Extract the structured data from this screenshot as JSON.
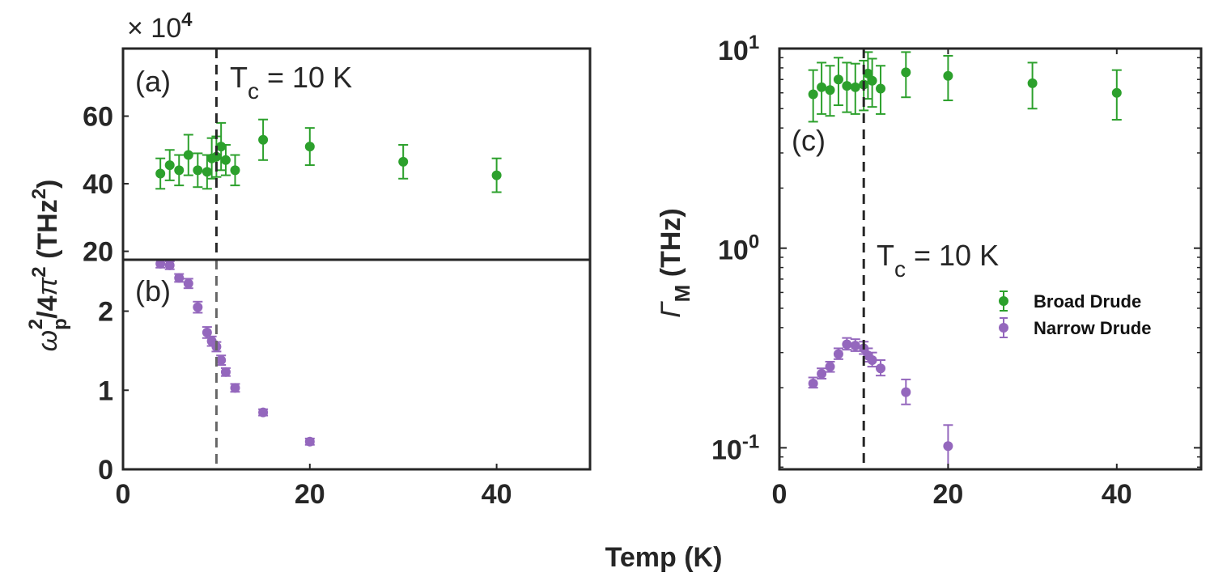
{
  "chart_data": [
    {
      "panel": "(a)",
      "type": "scatter",
      "title": "",
      "xlabel": "Temp (K)",
      "ylabel": "ω_p²/4π² (THz²)",
      "ylabel_parts": {
        "omega": "ω",
        "sub": "p",
        "sup": "2",
        "mid": "/4",
        "pi": "π",
        "sup2": "2",
        "unit": " (THz",
        "unit_sup": "2",
        "unit_close": ")"
      },
      "y_multiplier": "× 10",
      "y_multiplier_exp": "4",
      "xlim": [
        0,
        50
      ],
      "ylim": [
        17.5,
        80
      ],
      "yticks": [
        "20",
        "40",
        "60"
      ],
      "ytick_values": [
        20,
        40,
        60
      ],
      "tc_label": {
        "main": "T",
        "sub": "c",
        "rest": " = 10 K"
      },
      "series": [
        {
          "name": "Broad Drude",
          "color": "#2ca02c",
          "points": [
            {
              "x": 4,
              "y": 43,
              "err": 4.5
            },
            {
              "x": 5,
              "y": 45.5,
              "err": 4.5
            },
            {
              "x": 6,
              "y": 44,
              "err": 4.5
            },
            {
              "x": 7,
              "y": 48.5,
              "err": 6
            },
            {
              "x": 8,
              "y": 44,
              "err": 5
            },
            {
              "x": 9,
              "y": 43.5,
              "err": 5
            },
            {
              "x": 9.5,
              "y": 47.5,
              "err": 6
            },
            {
              "x": 10,
              "y": 48,
              "err": 6
            },
            {
              "x": 10.5,
              "y": 51,
              "err": 7
            },
            {
              "x": 11,
              "y": 47,
              "err": 4.5
            },
            {
              "x": 12,
              "y": 44,
              "err": 4.5
            },
            {
              "x": 15,
              "y": 53,
              "err": 6
            },
            {
              "x": 20,
              "y": 51,
              "err": 5.5
            },
            {
              "x": 30,
              "y": 46.5,
              "err": 5
            },
            {
              "x": 40,
              "y": 42.5,
              "err": 5
            }
          ]
        }
      ]
    },
    {
      "panel": "(b)",
      "type": "scatter",
      "title": "",
      "xlabel": "Temp (K)",
      "xlim": [
        0,
        50
      ],
      "ylim": [
        0,
        2.65
      ],
      "xticks": [
        "0",
        "20",
        "40"
      ],
      "xtick_values": [
        0,
        20,
        40
      ],
      "yticks": [
        "0",
        "1",
        "2"
      ],
      "ytick_values": [
        0,
        1,
        2
      ],
      "series": [
        {
          "name": "Narrow Drude",
          "color": "#9467bd",
          "points": [
            {
              "x": 4,
              "y": 2.6,
              "err": 0.05
            },
            {
              "x": 5,
              "y": 2.58,
              "err": 0.05
            },
            {
              "x": 6,
              "y": 2.42,
              "err": 0.05
            },
            {
              "x": 7,
              "y": 2.35,
              "err": 0.06
            },
            {
              "x": 8,
              "y": 2.05,
              "err": 0.07
            },
            {
              "x": 9,
              "y": 1.73,
              "err": 0.07
            },
            {
              "x": 9.5,
              "y": 1.62,
              "err": 0.06
            },
            {
              "x": 10,
              "y": 1.55,
              "err": 0.06
            },
            {
              "x": 10.5,
              "y": 1.38,
              "err": 0.06
            },
            {
              "x": 11,
              "y": 1.23,
              "err": 0.05
            },
            {
              "x": 12,
              "y": 1.03,
              "err": 0.05
            },
            {
              "x": 15,
              "y": 0.72,
              "err": 0.04
            },
            {
              "x": 20,
              "y": 0.35,
              "err": 0.04
            }
          ]
        }
      ]
    },
    {
      "panel": "(c)",
      "type": "scatter",
      "title": "",
      "xlabel": "Temp (K)",
      "ylabel_parts": {
        "gamma": "Γ",
        "sub": "M",
        "unit": " (THz)"
      },
      "xlim": [
        0,
        50
      ],
      "ylim": [
        0.078,
        10
      ],
      "yscale": "log",
      "xticks": [
        "0",
        "20",
        "40"
      ],
      "xtick_values": [
        0,
        20,
        40
      ],
      "yticks": [
        {
          "base": "10",
          "exp": "1",
          "value": 10
        },
        {
          "base": "10",
          "exp": "0",
          "value": 1
        },
        {
          "base": "10",
          "exp": "-1",
          "value": 0.1
        }
      ],
      "tc_label": {
        "main": "T",
        "sub": "c",
        "rest": " = 10 K"
      },
      "legend": {
        "position": "right",
        "entries": [
          "Broad Drude",
          "Narrow Drude"
        ]
      },
      "series": [
        {
          "name": "Broad Drude",
          "color": "#2ca02c",
          "points": [
            {
              "x": 4,
              "y": 5.9,
              "lo": 4.3,
              "hi": 7.8
            },
            {
              "x": 5,
              "y": 6.4,
              "lo": 4.7,
              "hi": 8.5
            },
            {
              "x": 6,
              "y": 6.2,
              "lo": 4.6,
              "hi": 8.2
            },
            {
              "x": 7,
              "y": 7.0,
              "lo": 5.2,
              "hi": 9.0
            },
            {
              "x": 8,
              "y": 6.5,
              "lo": 4.8,
              "hi": 8.5
            },
            {
              "x": 9,
              "y": 6.4,
              "lo": 4.7,
              "hi": 8.4
            },
            {
              "x": 10,
              "y": 6.6,
              "lo": 4.9,
              "hi": 8.7
            },
            {
              "x": 10.5,
              "y": 7.5,
              "lo": 5.6,
              "hi": 9.6
            },
            {
              "x": 11,
              "y": 6.9,
              "lo": 5.1,
              "hi": 8.9
            },
            {
              "x": 12,
              "y": 6.3,
              "lo": 4.7,
              "hi": 8.2
            },
            {
              "x": 15,
              "y": 7.6,
              "lo": 5.7,
              "hi": 9.6
            },
            {
              "x": 20,
              "y": 7.3,
              "lo": 5.5,
              "hi": 9.2
            },
            {
              "x": 30,
              "y": 6.7,
              "lo": 5.0,
              "hi": 8.5
            },
            {
              "x": 40,
              "y": 6.0,
              "lo": 4.4,
              "hi": 7.8
            }
          ]
        },
        {
          "name": "Narrow Drude",
          "color": "#9467bd",
          "points": [
            {
              "x": 4,
              "y": 0.21,
              "lo": 0.2,
              "hi": 0.225
            },
            {
              "x": 5,
              "y": 0.235,
              "lo": 0.222,
              "hi": 0.25
            },
            {
              "x": 6,
              "y": 0.255,
              "lo": 0.24,
              "hi": 0.27
            },
            {
              "x": 7,
              "y": 0.295,
              "lo": 0.278,
              "hi": 0.315
            },
            {
              "x": 8,
              "y": 0.33,
              "lo": 0.31,
              "hi": 0.355
            },
            {
              "x": 9,
              "y": 0.325,
              "lo": 0.305,
              "hi": 0.35
            },
            {
              "x": 10,
              "y": 0.315,
              "lo": 0.295,
              "hi": 0.34
            },
            {
              "x": 10.5,
              "y": 0.29,
              "lo": 0.27,
              "hi": 0.315
            },
            {
              "x": 11,
              "y": 0.275,
              "lo": 0.255,
              "hi": 0.3
            },
            {
              "x": 12,
              "y": 0.25,
              "lo": 0.23,
              "hi": 0.275
            },
            {
              "x": 15,
              "y": 0.19,
              "lo": 0.165,
              "hi": 0.22
            },
            {
              "x": 20,
              "y": 0.102,
              "lo": 0.078,
              "hi": 0.13
            }
          ]
        }
      ]
    }
  ]
}
